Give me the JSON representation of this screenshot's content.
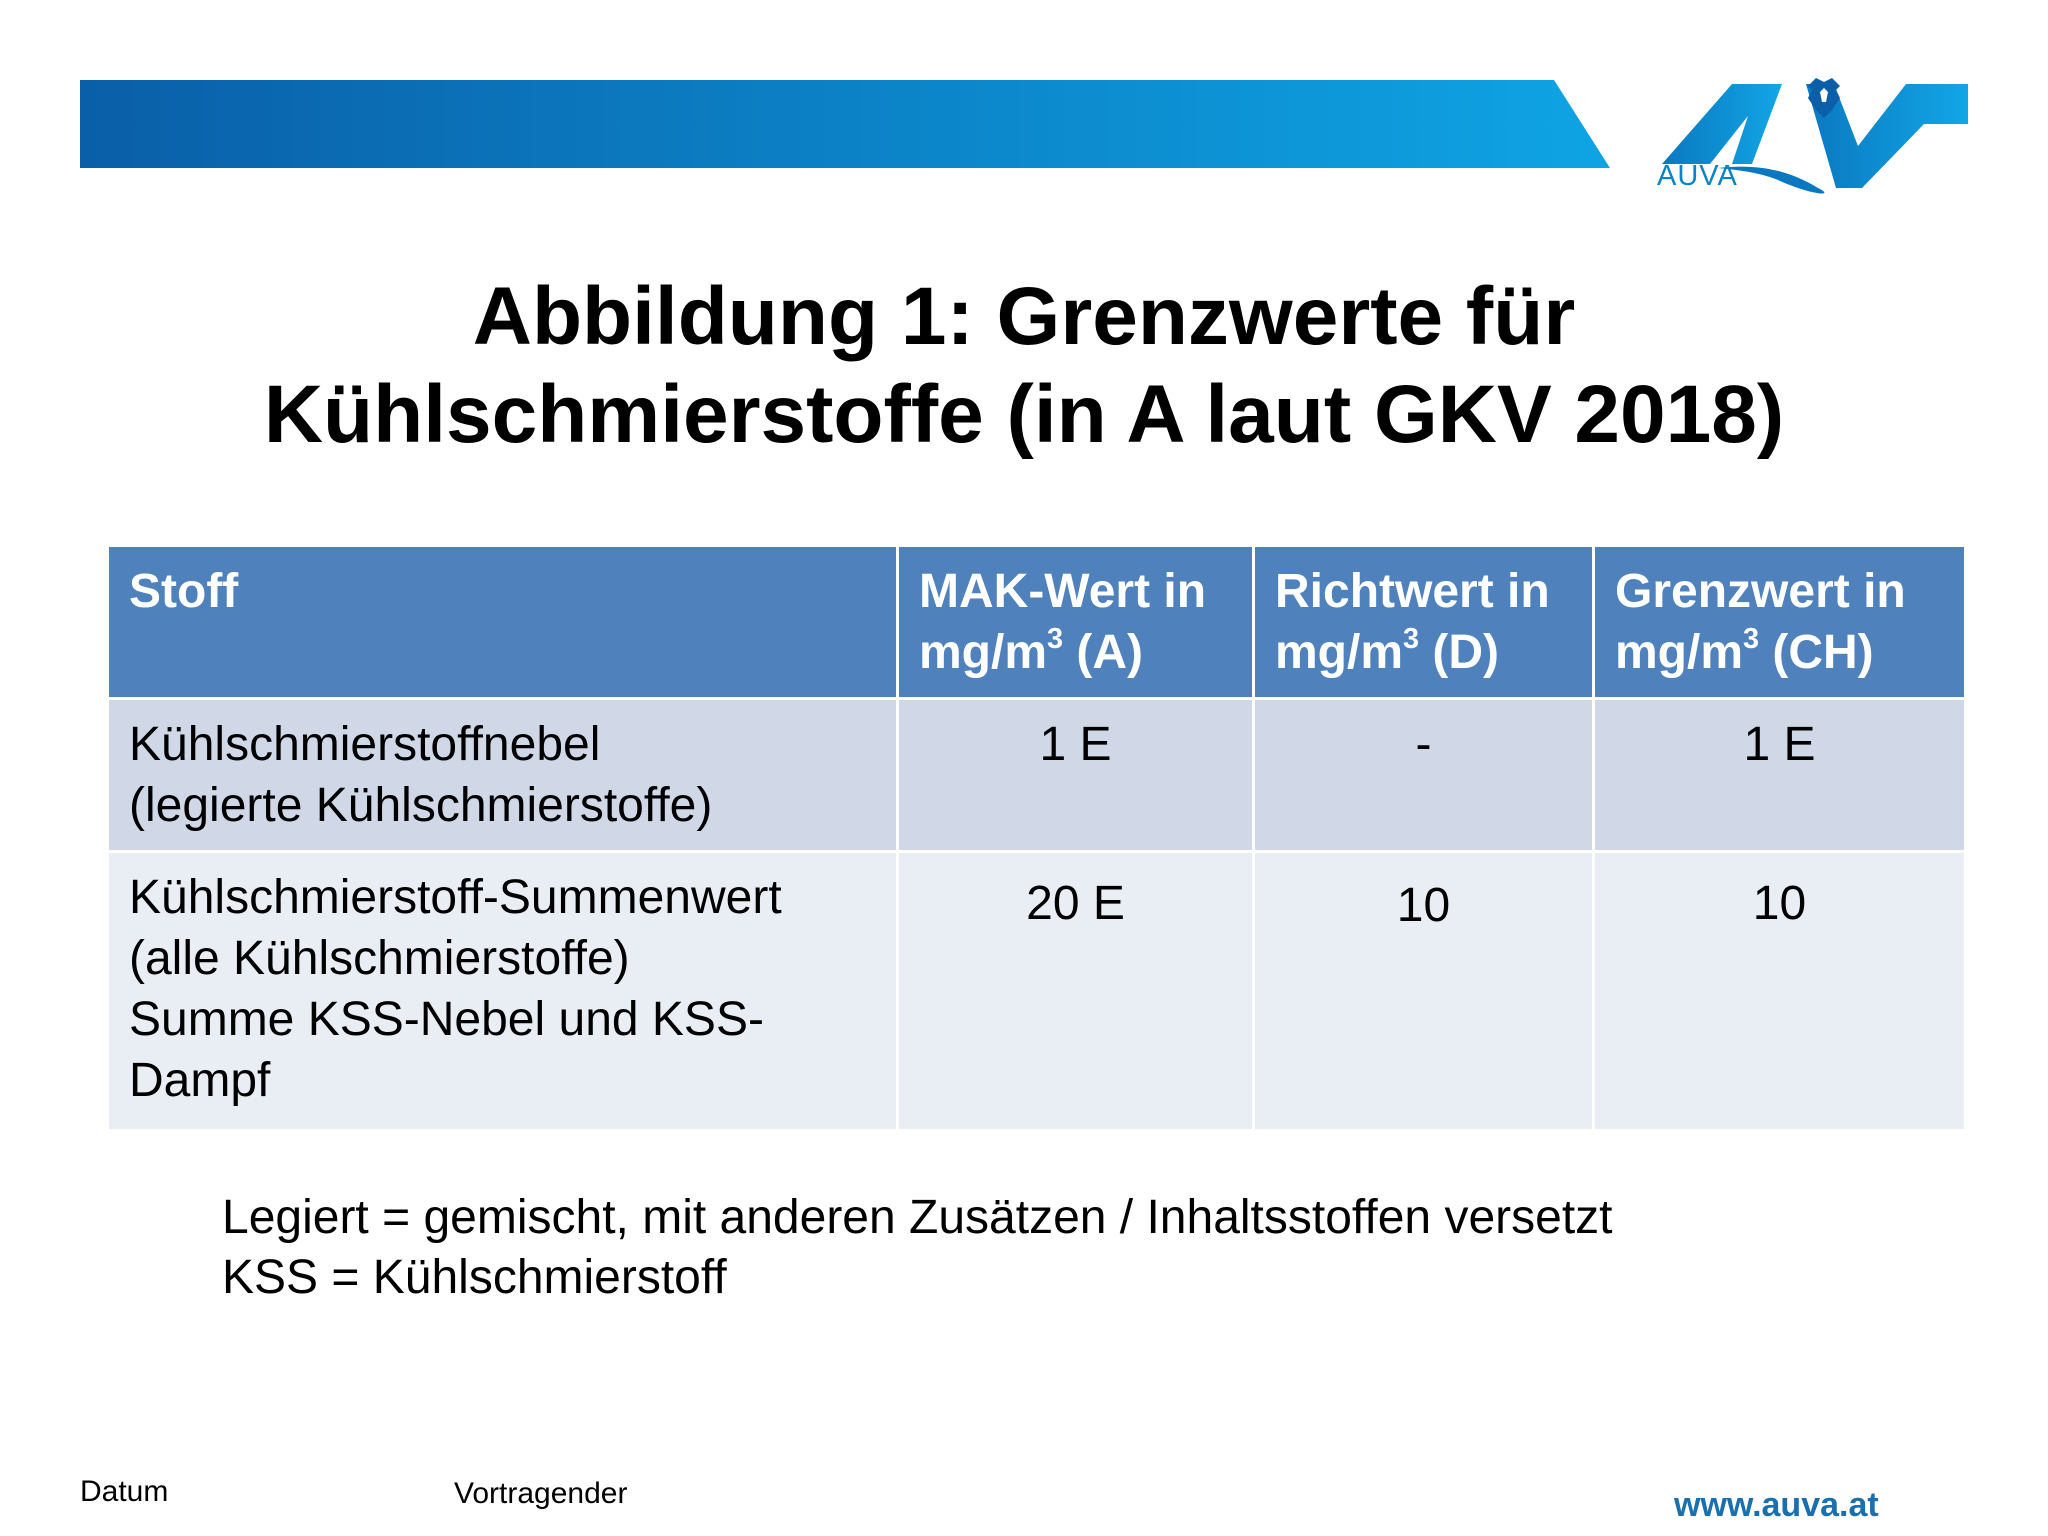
{
  "colors": {
    "banner_start": "#0a5fa8",
    "banner_end": "#0ea4e4",
    "header_bg": "#4f81bd",
    "row_odd_bg": "#d0d8e8",
    "row_even_bg": "#e9edf4",
    "logo_blue": "#0a84c6",
    "url_blue": "#1a6fae"
  },
  "logo": {
    "text": "AUVA",
    "icon": "auva-eagle-logo-icon"
  },
  "title": {
    "line1": "Abbildung 1: Grenzwerte für",
    "line2": "Kühlschmierstoffe (in A laut GKV 2018)"
  },
  "table": {
    "headers": [
      {
        "line1": "Stoff",
        "line2": ""
      },
      {
        "line1": "MAK-Wert in",
        "unit": "mg/m",
        "exp": "3",
        "suffix": " (A)"
      },
      {
        "line1": "Richtwert in",
        "unit": "mg/m",
        "exp": "3",
        "suffix": " (D)"
      },
      {
        "line1": "Grenzwert in",
        "unit": "mg/m",
        "exp": "3",
        "suffix": " (CH)"
      }
    ],
    "rows": [
      {
        "stoff": [
          "Kühlschmierstoffnebel",
          "(legierte Kühlschmierstoffe)"
        ],
        "a": "1 E",
        "d": "-",
        "ch": "1 E"
      },
      {
        "stoff": [
          "Kühlschmierstoff-Summenwert",
          "(alle Kühlschmierstoffe)",
          "Summe KSS-Nebel und KSS-",
          "Dampf"
        ],
        "a": "20 E",
        "d": "10",
        "ch": "10"
      }
    ]
  },
  "legend": {
    "line1": "Legiert = gemischt, mit anderen Zusätzen / Inhaltsstoffen versetzt",
    "line2": "KSS = Kühlschmierstoff"
  },
  "footer": {
    "datum": "Datum",
    "vortragender": "Vortragender",
    "url": "www.auva.at"
  }
}
